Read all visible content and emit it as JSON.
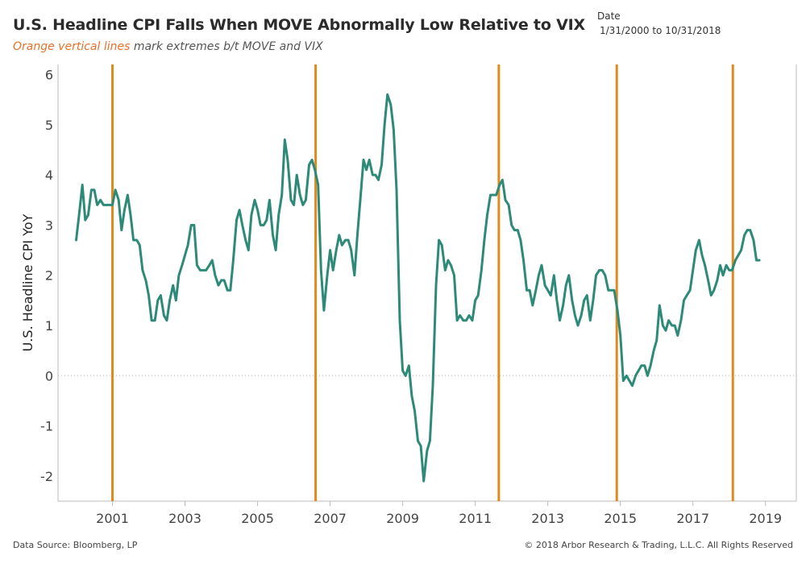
{
  "header": {
    "title": "U.S. Headline CPI Falls When MOVE Abnormally Low Relative to VIX",
    "subtitle_accent": "Orange vertical lines",
    "subtitle_rest": "mark extremes b/t MOVE and VIX",
    "date_label": "Date",
    "date_range": "1/31/2000 to 10/31/2018"
  },
  "footer": {
    "source": "Data Source: Bloomberg, LP",
    "copyright": "© 2018 Arbor Research & Trading, L.L.C. All Rights Reserved"
  },
  "colors": {
    "line": "#2e8a78",
    "vlines": "#e08a1e",
    "axis": "#bbbbbb",
    "zero": "#bbbbbb"
  },
  "chart_data": {
    "type": "line",
    "title": "U.S. Headline CPI Falls When MOVE Abnormally Low Relative to VIX",
    "xlabel": "",
    "ylabel": "U.S. Headline CPI YoY",
    "xlim": [
      1999.5,
      2019.85
    ],
    "ylim": [
      -2.5,
      6.2
    ],
    "x_ticks": [
      2001,
      2003,
      2005,
      2007,
      2009,
      2011,
      2013,
      2015,
      2017,
      2019
    ],
    "y_ticks": [
      -2,
      -1,
      0,
      1,
      2,
      3,
      4,
      5,
      6
    ],
    "vertical_lines": [
      2001.0,
      2006.6,
      2011.65,
      2014.9,
      2018.1
    ],
    "series": [
      {
        "name": "U.S. Headline CPI YoY",
        "points": [
          [
            2000.0,
            2.7
          ],
          [
            2000.08,
            3.2
          ],
          [
            2000.17,
            3.8
          ],
          [
            2000.25,
            3.1
          ],
          [
            2000.33,
            3.2
          ],
          [
            2000.42,
            3.7
          ],
          [
            2000.5,
            3.7
          ],
          [
            2000.58,
            3.4
          ],
          [
            2000.67,
            3.5
          ],
          [
            2000.75,
            3.4
          ],
          [
            2000.83,
            3.4
          ],
          [
            2000.92,
            3.4
          ],
          [
            2001.0,
            3.4
          ],
          [
            2001.08,
            3.7
          ],
          [
            2001.17,
            3.5
          ],
          [
            2001.25,
            2.9
          ],
          [
            2001.33,
            3.3
          ],
          [
            2001.42,
            3.6
          ],
          [
            2001.5,
            3.2
          ],
          [
            2001.58,
            2.7
          ],
          [
            2001.67,
            2.7
          ],
          [
            2001.75,
            2.6
          ],
          [
            2001.83,
            2.1
          ],
          [
            2001.92,
            1.9
          ],
          [
            2002.0,
            1.6
          ],
          [
            2002.08,
            1.1
          ],
          [
            2002.17,
            1.1
          ],
          [
            2002.25,
            1.5
          ],
          [
            2002.33,
            1.6
          ],
          [
            2002.42,
            1.2
          ],
          [
            2002.5,
            1.1
          ],
          [
            2002.58,
            1.5
          ],
          [
            2002.67,
            1.8
          ],
          [
            2002.75,
            1.5
          ],
          [
            2002.83,
            2.0
          ],
          [
            2002.92,
            2.2
          ],
          [
            2003.0,
            2.4
          ],
          [
            2003.08,
            2.6
          ],
          [
            2003.17,
            3.0
          ],
          [
            2003.25,
            3.0
          ],
          [
            2003.33,
            2.2
          ],
          [
            2003.42,
            2.1
          ],
          [
            2003.5,
            2.1
          ],
          [
            2003.58,
            2.1
          ],
          [
            2003.67,
            2.2
          ],
          [
            2003.75,
            2.3
          ],
          [
            2003.83,
            2.0
          ],
          [
            2003.92,
            1.8
          ],
          [
            2004.0,
            1.9
          ],
          [
            2004.08,
            1.9
          ],
          [
            2004.17,
            1.7
          ],
          [
            2004.25,
            1.7
          ],
          [
            2004.33,
            2.3
          ],
          [
            2004.42,
            3.1
          ],
          [
            2004.5,
            3.3
          ],
          [
            2004.58,
            3.0
          ],
          [
            2004.67,
            2.7
          ],
          [
            2004.75,
            2.5
          ],
          [
            2004.83,
            3.2
          ],
          [
            2004.92,
            3.5
          ],
          [
            2005.0,
            3.3
          ],
          [
            2005.08,
            3.0
          ],
          [
            2005.17,
            3.0
          ],
          [
            2005.25,
            3.1
          ],
          [
            2005.33,
            3.5
          ],
          [
            2005.42,
            2.8
          ],
          [
            2005.5,
            2.5
          ],
          [
            2005.58,
            3.2
          ],
          [
            2005.67,
            3.6
          ],
          [
            2005.75,
            4.7
          ],
          [
            2005.83,
            4.3
          ],
          [
            2005.92,
            3.5
          ],
          [
            2006.0,
            3.4
          ],
          [
            2006.08,
            4.0
          ],
          [
            2006.17,
            3.6
          ],
          [
            2006.25,
            3.4
          ],
          [
            2006.33,
            3.5
          ],
          [
            2006.42,
            4.2
          ],
          [
            2006.5,
            4.3
          ],
          [
            2006.58,
            4.1
          ],
          [
            2006.67,
            3.8
          ],
          [
            2006.75,
            2.1
          ],
          [
            2006.83,
            1.3
          ],
          [
            2006.92,
            2.0
          ],
          [
            2007.0,
            2.5
          ],
          [
            2007.08,
            2.1
          ],
          [
            2007.17,
            2.5
          ],
          [
            2007.25,
            2.8
          ],
          [
            2007.33,
            2.6
          ],
          [
            2007.42,
            2.7
          ],
          [
            2007.5,
            2.7
          ],
          [
            2007.58,
            2.5
          ],
          [
            2007.67,
            2.0
          ],
          [
            2007.75,
            2.8
          ],
          [
            2007.83,
            3.5
          ],
          [
            2007.92,
            4.3
          ],
          [
            2008.0,
            4.1
          ],
          [
            2008.08,
            4.3
          ],
          [
            2008.17,
            4.0
          ],
          [
            2008.25,
            4.0
          ],
          [
            2008.33,
            3.9
          ],
          [
            2008.42,
            4.2
          ],
          [
            2008.5,
            5.0
          ],
          [
            2008.58,
            5.6
          ],
          [
            2008.67,
            5.4
          ],
          [
            2008.75,
            4.9
          ],
          [
            2008.83,
            3.7
          ],
          [
            2008.92,
            1.1
          ],
          [
            2009.0,
            0.1
          ],
          [
            2009.08,
            0.0
          ],
          [
            2009.17,
            0.2
          ],
          [
            2009.25,
            -0.4
          ],
          [
            2009.33,
            -0.7
          ],
          [
            2009.42,
            -1.3
          ],
          [
            2009.5,
            -1.4
          ],
          [
            2009.58,
            -2.1
          ],
          [
            2009.67,
            -1.5
          ],
          [
            2009.75,
            -1.3
          ],
          [
            2009.83,
            -0.2
          ],
          [
            2009.92,
            1.8
          ],
          [
            2010.0,
            2.7
          ],
          [
            2010.08,
            2.6
          ],
          [
            2010.17,
            2.1
          ],
          [
            2010.25,
            2.3
          ],
          [
            2010.33,
            2.2
          ],
          [
            2010.42,
            2.0
          ],
          [
            2010.5,
            1.1
          ],
          [
            2010.58,
            1.2
          ],
          [
            2010.67,
            1.1
          ],
          [
            2010.75,
            1.1
          ],
          [
            2010.83,
            1.2
          ],
          [
            2010.92,
            1.1
          ],
          [
            2011.0,
            1.5
          ],
          [
            2011.08,
            1.6
          ],
          [
            2011.17,
            2.1
          ],
          [
            2011.25,
            2.7
          ],
          [
            2011.33,
            3.2
          ],
          [
            2011.42,
            3.6
          ],
          [
            2011.5,
            3.6
          ],
          [
            2011.58,
            3.6
          ],
          [
            2011.67,
            3.8
          ],
          [
            2011.75,
            3.9
          ],
          [
            2011.83,
            3.5
          ],
          [
            2011.92,
            3.4
          ],
          [
            2012.0,
            3.0
          ],
          [
            2012.08,
            2.9
          ],
          [
            2012.17,
            2.9
          ],
          [
            2012.25,
            2.7
          ],
          [
            2012.33,
            2.3
          ],
          [
            2012.42,
            1.7
          ],
          [
            2012.5,
            1.7
          ],
          [
            2012.58,
            1.4
          ],
          [
            2012.67,
            1.7
          ],
          [
            2012.75,
            2.0
          ],
          [
            2012.83,
            2.2
          ],
          [
            2012.92,
            1.8
          ],
          [
            2013.0,
            1.7
          ],
          [
            2013.08,
            1.6
          ],
          [
            2013.17,
            2.0
          ],
          [
            2013.25,
            1.5
          ],
          [
            2013.33,
            1.1
          ],
          [
            2013.42,
            1.4
          ],
          [
            2013.5,
            1.8
          ],
          [
            2013.58,
            2.0
          ],
          [
            2013.67,
            1.5
          ],
          [
            2013.75,
            1.2
          ],
          [
            2013.83,
            1.0
          ],
          [
            2013.92,
            1.2
          ],
          [
            2014.0,
            1.5
          ],
          [
            2014.08,
            1.6
          ],
          [
            2014.17,
            1.1
          ],
          [
            2014.25,
            1.5
          ],
          [
            2014.33,
            2.0
          ],
          [
            2014.42,
            2.1
          ],
          [
            2014.5,
            2.1
          ],
          [
            2014.58,
            2.0
          ],
          [
            2014.67,
            1.7
          ],
          [
            2014.75,
            1.7
          ],
          [
            2014.83,
            1.7
          ],
          [
            2014.92,
            1.3
          ],
          [
            2015.0,
            0.8
          ],
          [
            2015.08,
            -0.1
          ],
          [
            2015.17,
            0.0
          ],
          [
            2015.25,
            -0.1
          ],
          [
            2015.33,
            -0.2
          ],
          [
            2015.42,
            0.0
          ],
          [
            2015.5,
            0.1
          ],
          [
            2015.58,
            0.2
          ],
          [
            2015.67,
            0.2
          ],
          [
            2015.75,
            0.0
          ],
          [
            2015.83,
            0.2
          ],
          [
            2015.92,
            0.5
          ],
          [
            2016.0,
            0.7
          ],
          [
            2016.08,
            1.4
          ],
          [
            2016.17,
            1.0
          ],
          [
            2016.25,
            0.9
          ],
          [
            2016.33,
            1.1
          ],
          [
            2016.42,
            1.0
          ],
          [
            2016.5,
            1.0
          ],
          [
            2016.58,
            0.8
          ],
          [
            2016.67,
            1.1
          ],
          [
            2016.75,
            1.5
          ],
          [
            2016.83,
            1.6
          ],
          [
            2016.92,
            1.7
          ],
          [
            2017.0,
            2.1
          ],
          [
            2017.08,
            2.5
          ],
          [
            2017.17,
            2.7
          ],
          [
            2017.25,
            2.4
          ],
          [
            2017.33,
            2.2
          ],
          [
            2017.42,
            1.9
          ],
          [
            2017.5,
            1.6
          ],
          [
            2017.58,
            1.7
          ],
          [
            2017.67,
            1.9
          ],
          [
            2017.75,
            2.2
          ],
          [
            2017.83,
            2.0
          ],
          [
            2017.92,
            2.2
          ],
          [
            2018.0,
            2.1
          ],
          [
            2018.08,
            2.1
          ],
          [
            2018.17,
            2.3
          ],
          [
            2018.25,
            2.4
          ],
          [
            2018.33,
            2.5
          ],
          [
            2018.42,
            2.8
          ],
          [
            2018.5,
            2.9
          ],
          [
            2018.58,
            2.9
          ],
          [
            2018.67,
            2.7
          ],
          [
            2018.75,
            2.3
          ],
          [
            2018.83,
            2.3
          ]
        ]
      }
    ]
  }
}
